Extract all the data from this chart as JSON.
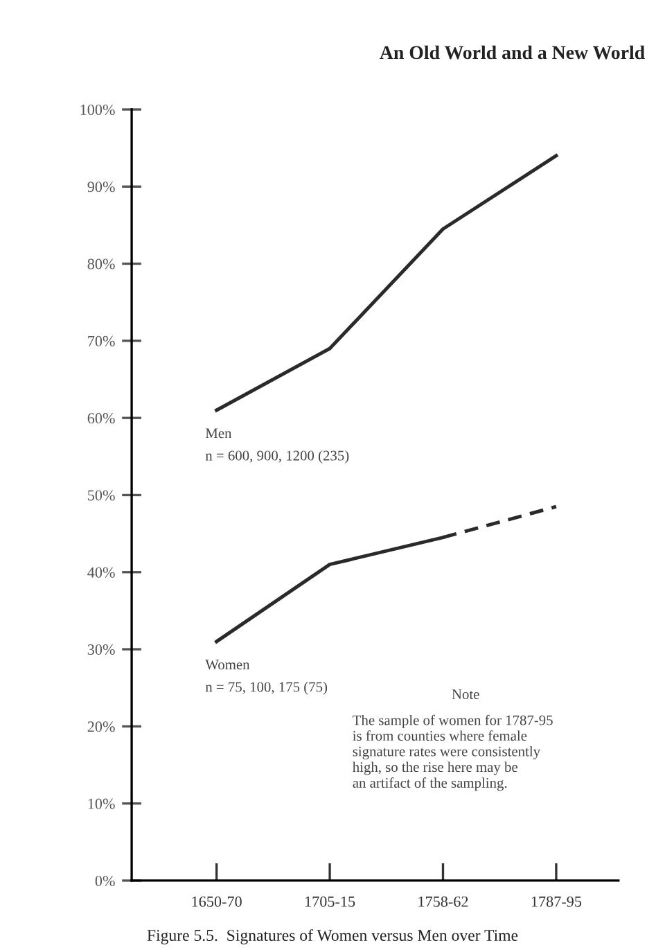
{
  "chart_data": {
    "type": "line",
    "title": "Figure 5.5.  Signatures of Women versus Men over Time",
    "categories": [
      "1650-70",
      "1705-15",
      "1758-62",
      "1787-95"
    ],
    "series": [
      {
        "name": "Men",
        "color": "#2a2a2a",
        "values": [
          61,
          69,
          84.5,
          94
        ]
      },
      {
        "name": "Women",
        "color": "#2a2a2a",
        "values": [
          31,
          41,
          44.5,
          null
        ]
      },
      {
        "color": "#2a2a2a",
        "values": [
          null,
          null,
          44.5,
          48.5
        ],
        "line_style": "dashed"
      }
    ],
    "ylim": [
      0,
      100
    ],
    "yticks": [
      {
        "value": 0,
        "label": "0%"
      },
      {
        "value": 10,
        "label": "10%"
      },
      {
        "value": 20,
        "label": "20%"
      },
      {
        "value": 30,
        "label": "30%"
      },
      {
        "value": 40,
        "label": "40%"
      },
      {
        "value": 50,
        "label": "50%"
      },
      {
        "value": 60,
        "label": "60%"
      },
      {
        "value": 70,
        "label": "70%"
      },
      {
        "value": 80,
        "label": "80%"
      },
      {
        "value": 90,
        "label": "90%"
      },
      {
        "value": 100,
        "label": "100%"
      }
    ],
    "annotations": [
      "An Old World and a New World",
      "n = 600, 900, 1200 (235)",
      "n = 75, 100, 175 (75)",
      "Note",
      "The sample of women for 1787-95\nis from counties where female\nsignature rates were consistently\nhigh, so the rise here may be\nan artifact of the sampling."
    ],
    "line_style": "solid",
    "marker": "none",
    "grid": false,
    "legend": false
  }
}
